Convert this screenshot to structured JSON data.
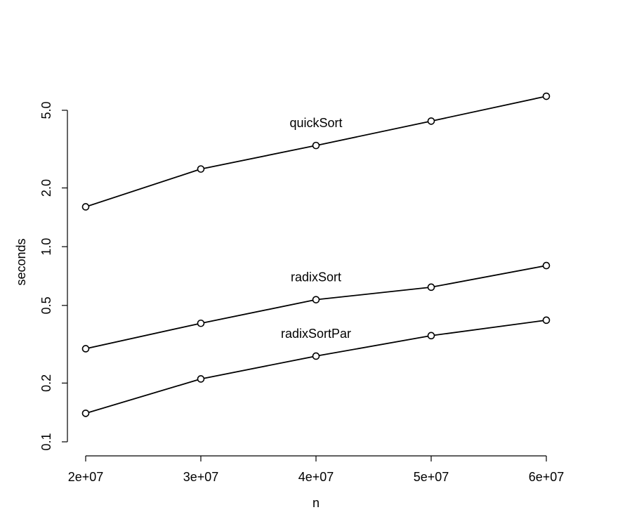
{
  "chart_data": {
    "type": "line",
    "title": "",
    "xlabel": "n",
    "ylabel": "seconds",
    "x_ticks": [
      20000000,
      30000000,
      40000000,
      50000000,
      60000000
    ],
    "x_tick_labels": [
      "2e+07",
      "3e+07",
      "4e+07",
      "5e+07",
      "6e+07"
    ],
    "y_scale": "log",
    "y_ticks": [
      0.1,
      0.2,
      0.5,
      1.0,
      2.0,
      5.0
    ],
    "y_tick_labels": [
      "0.1",
      "0.2",
      "0.5",
      "1.0",
      "2.0",
      "5.0"
    ],
    "grid": false,
    "legend": "none",
    "x": [
      20000000,
      30000000,
      40000000,
      50000000,
      60000000
    ],
    "series": [
      {
        "name": "quickSort",
        "values": [
          1.6,
          2.5,
          3.3,
          4.4,
          5.9
        ]
      },
      {
        "name": "radixSort",
        "values": [
          0.3,
          0.405,
          0.535,
          0.62,
          0.8
        ]
      },
      {
        "name": "radixSortPar",
        "values": [
          0.14,
          0.21,
          0.275,
          0.35,
          0.42
        ]
      }
    ]
  }
}
